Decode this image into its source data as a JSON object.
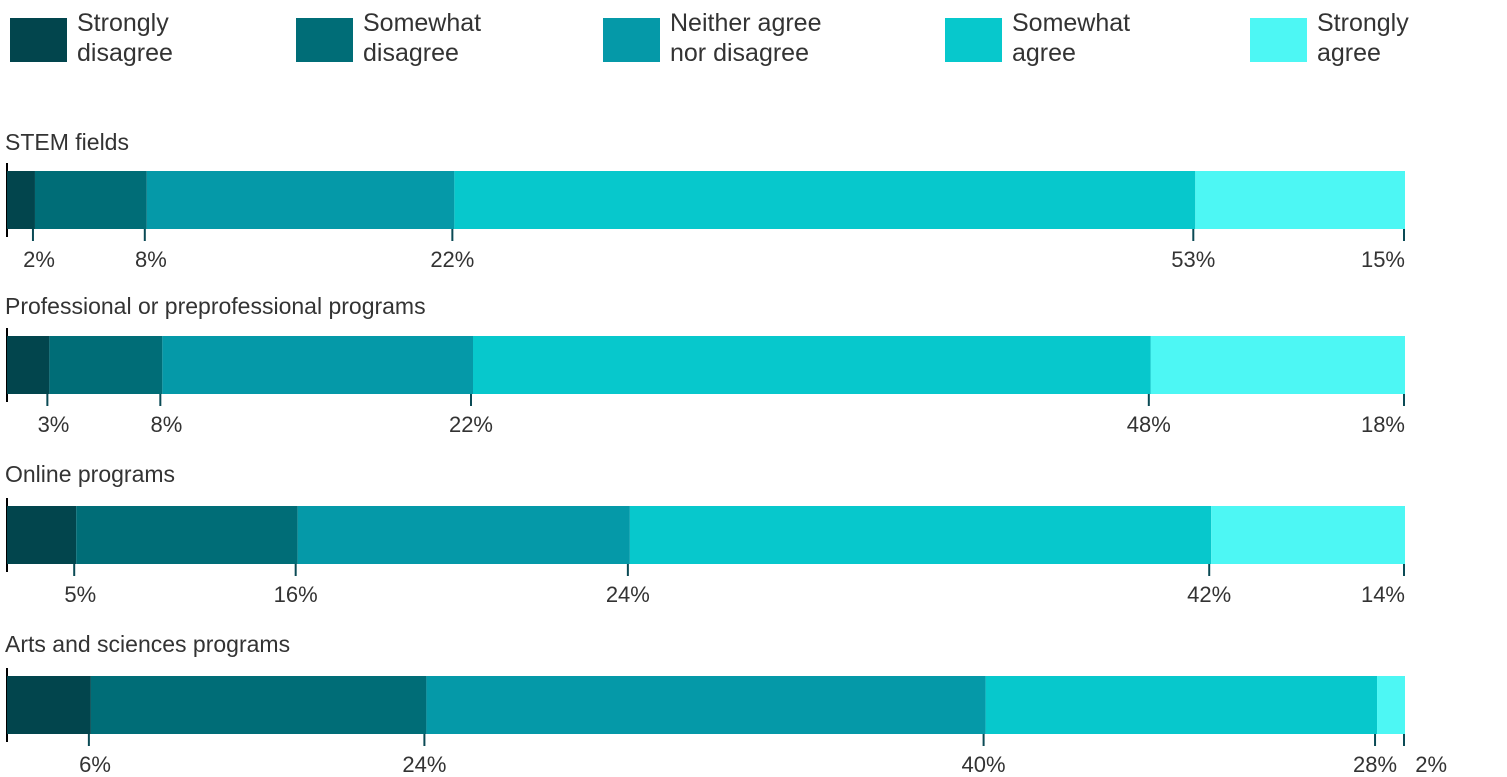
{
  "chart_data": {
    "type": "bar",
    "orientation": "horizontal",
    "stacked": true,
    "legend_position": "top",
    "series": [
      {
        "name_lines": [
          "Strongly",
          "disagree"
        ],
        "color": "#02454d"
      },
      {
        "name_lines": [
          "Somewhat",
          "disagree"
        ],
        "color": "#006d77"
      },
      {
        "name_lines": [
          "Neither agree",
          "nor disagree"
        ],
        "color": "#0599a8"
      },
      {
        "name_lines": [
          "Somewhat",
          "agree"
        ],
        "color": "#07c8cc"
      },
      {
        "name_lines": [
          "Strongly",
          "agree"
        ],
        "color": "#4df7f4"
      }
    ],
    "categories": [
      {
        "label": "STEM fields",
        "values": [
          2,
          8,
          22,
          53,
          15
        ],
        "labels": [
          "2%",
          "8%",
          "22%",
          "53%",
          "15%"
        ]
      },
      {
        "label": "Professional or preprofessional programs",
        "values": [
          3,
          8,
          22,
          48,
          18
        ],
        "labels": [
          "3%",
          "8%",
          "22%",
          "48%",
          "18%"
        ]
      },
      {
        "label": "Online programs",
        "values": [
          5,
          16,
          24,
          42,
          14
        ],
        "labels": [
          "5%",
          "16%",
          "24%",
          "42%",
          "14%"
        ]
      },
      {
        "label": "Arts and sciences programs",
        "values": [
          6,
          24,
          40,
          28,
          2
        ],
        "labels": [
          "6%",
          "24%",
          "40%",
          "28%",
          "2%"
        ]
      }
    ]
  }
}
